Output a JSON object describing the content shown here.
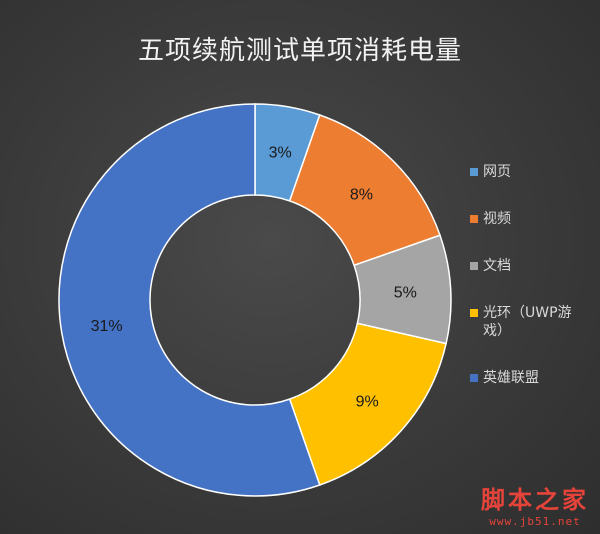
{
  "chart_data": {
    "type": "pie",
    "title": "五项续航测试单项消耗电量",
    "categories": [
      "网页",
      "视频",
      "文档",
      "光环（UWP游戏）",
      "英雄联盟"
    ],
    "values": [
      3,
      8,
      5,
      9,
      31
    ],
    "labels": [
      "3%",
      "8%",
      "5%",
      "9%",
      "31%"
    ],
    "colors": [
      "#5b9bd5",
      "#ed7d31",
      "#a5a5a5",
      "#ffc000",
      "#4472c4"
    ],
    "donut": true,
    "legend": "right"
  },
  "legend_display": [
    "网页",
    "视频",
    "文档",
    "光环（UWP游\n戏）",
    "英雄联盟"
  ],
  "watermark": {
    "main": "脚本之家",
    "sub": "www.jb51.net"
  }
}
